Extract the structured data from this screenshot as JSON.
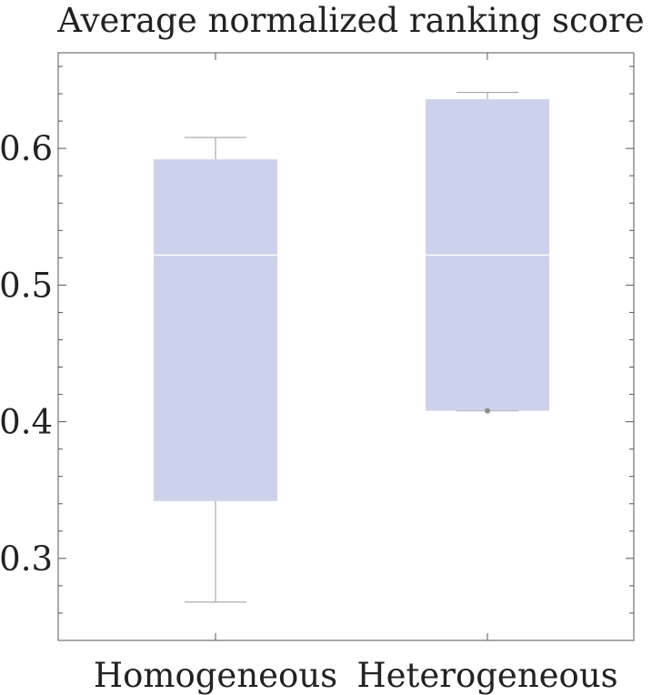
{
  "chart_data": {
    "type": "box",
    "title": "Average normalized ranking score",
    "xlabel": "",
    "ylabel": "",
    "categories": [
      "Homogeneous",
      "Heterogeneous"
    ],
    "ylim": [
      0.24,
      0.67
    ],
    "y_ticks": [
      0.3,
      0.4,
      0.5,
      0.6
    ],
    "y_tick_labels": [
      "0.3",
      "0.4",
      "0.5",
      "0.6"
    ],
    "y_minor_step": 0.02,
    "boxes": [
      {
        "category": "Homogeneous",
        "min": 0.268,
        "q1": 0.342,
        "median": 0.522,
        "q3": 0.592,
        "max": 0.608,
        "outliers": []
      },
      {
        "category": "Heterogeneous",
        "min": 0.408,
        "q1": 0.408,
        "median": 0.522,
        "q3": 0.636,
        "max": 0.641,
        "outliers": [
          0.408
        ]
      }
    ],
    "colors": {
      "box_fill": "#cdd2ec",
      "median_line": "#ffffff",
      "whisker": "#999999",
      "frame": "#555555",
      "outlier": "#8c8c8c",
      "text": "#222222"
    },
    "grid": false,
    "legend": "none"
  }
}
